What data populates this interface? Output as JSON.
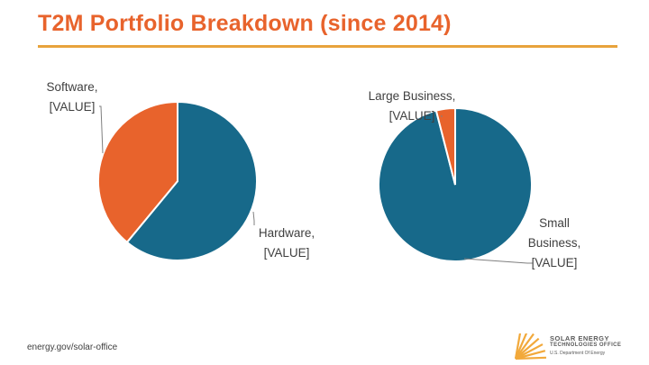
{
  "title": "T2M Portfolio Breakdown (since 2014)",
  "footer": "energy.gov/solar-office",
  "logo": {
    "line1": "SOLAR ENERGY",
    "line2": "TECHNOLOGIES OFFICE",
    "line3": "U.S. Department Of Energy",
    "accent_color": "#f2a93b"
  },
  "colors": {
    "title": "#e8632c",
    "rule": "#e8a33c",
    "blue": "#17698a",
    "orange": "#e8632c"
  },
  "chart_data": [
    {
      "type": "pie",
      "slices": [
        {
          "label": "Hardware",
          "value_text": "[VALUE]",
          "value": 61,
          "color": "#17698a"
        },
        {
          "label": "Software",
          "value_text": "[VALUE]",
          "value": 39,
          "color": "#e8632c"
        }
      ]
    },
    {
      "type": "pie",
      "slices": [
        {
          "label": "Small Business",
          "value_text": "[VALUE]",
          "value": 96,
          "color": "#17698a"
        },
        {
          "label": "Large Business",
          "value_text": "[VALUE]",
          "value": 4,
          "color": "#e8632c"
        }
      ]
    }
  ],
  "labels": {
    "software": {
      "name": "Software,",
      "value": "[VALUE]"
    },
    "hardware": {
      "name": "Hardware,",
      "value": "[VALUE]"
    },
    "large_business": {
      "name": "Large Business,",
      "value": "[VALUE]"
    },
    "small_business": {
      "name": "Small",
      "name2": "Business,",
      "value": "[VALUE]"
    }
  }
}
